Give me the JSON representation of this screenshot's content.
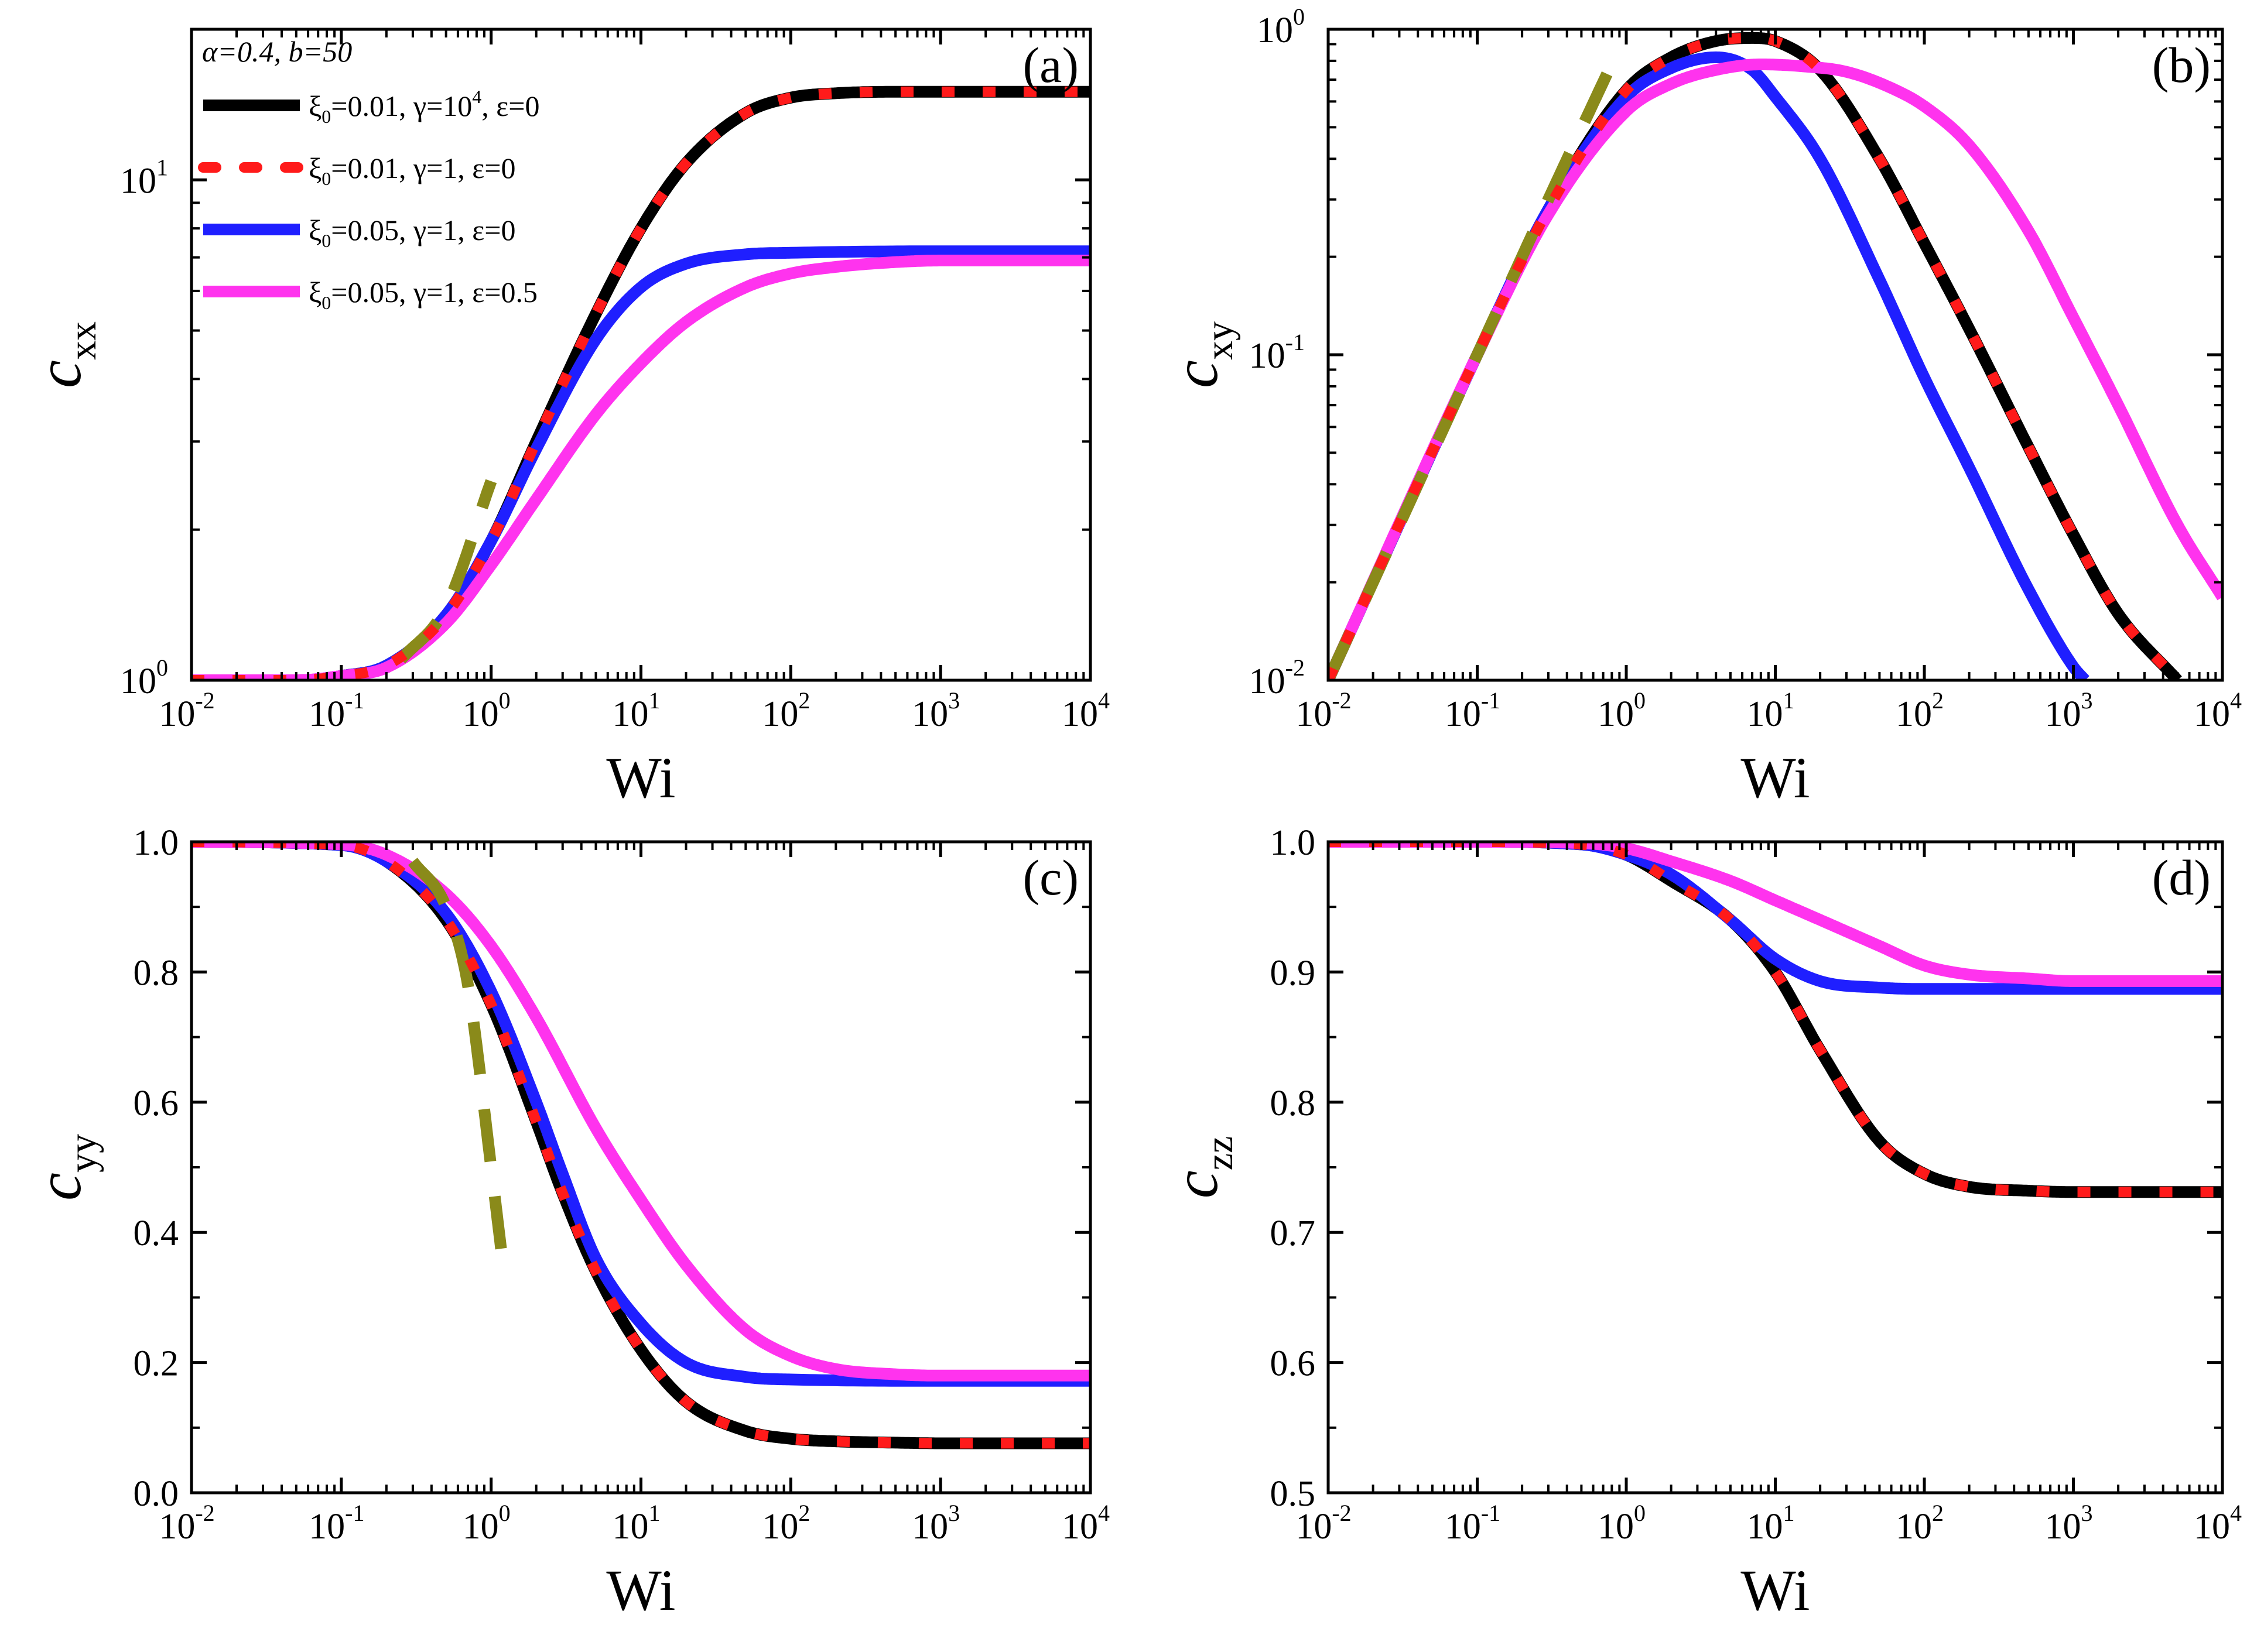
{
  "colors": {
    "black": "#000000",
    "red": "#ff1a1a",
    "blue": "#1f1fff",
    "magenta": "#ff33ee",
    "olive": "#8a8a1a"
  },
  "legend": {
    "header": "α=0.4, b=50",
    "entries": [
      {
        "label": "ξ0=0.01, γ=10^4, ε=0",
        "color": "black",
        "style": "solid"
      },
      {
        "label": "ξ0=0.01, γ=1, ε=0",
        "color": "red",
        "style": "dotted"
      },
      {
        "label": "ξ0=0.05, γ=1, ε=0",
        "color": "blue",
        "style": "solid"
      },
      {
        "label": "ξ0=0.05, γ=1, ε=0.5",
        "color": "magenta",
        "style": "solid"
      }
    ]
  },
  "chart_data": [
    {
      "id": "a",
      "panel_label": "(a)",
      "type": "line",
      "xlabel": "Wi",
      "ylabel_main": "c",
      "ylabel_sub": "xx",
      "xscale": "log",
      "yscale": "log",
      "xlim": [
        0.01,
        10000
      ],
      "ylim": [
        1,
        20
      ],
      "xticks": [
        {
          "v": 0.01,
          "base": "10",
          "exp": "-2"
        },
        {
          "v": 0.1,
          "base": "10",
          "exp": "-1"
        },
        {
          "v": 1,
          "base": "10",
          "exp": "0"
        },
        {
          "v": 10,
          "base": "10",
          "exp": "1"
        },
        {
          "v": 100,
          "base": "10",
          "exp": "2"
        },
        {
          "v": 1000,
          "base": "10",
          "exp": "3"
        },
        {
          "v": 10000,
          "base": "10",
          "exp": "4"
        }
      ],
      "yticks": [
        {
          "v": 1,
          "base": "10",
          "exp": "0"
        },
        {
          "v": 10,
          "base": "10",
          "exp": "1"
        }
      ],
      "series": [
        {
          "color": "black",
          "style": "solid",
          "x": [
            0.01,
            0.05,
            0.1,
            0.2,
            0.5,
            1,
            2,
            5,
            10,
            20,
            50,
            100,
            200,
            500,
            1000,
            10000
          ],
          "y": [
            1.0,
            1.0,
            1.02,
            1.07,
            1.35,
            1.9,
            3.0,
            5.4,
            8.0,
            10.8,
            13.6,
            14.6,
            14.9,
            15.0,
            15.0,
            15.0
          ]
        },
        {
          "color": "red",
          "style": "dotted",
          "x": [
            0.01,
            0.05,
            0.1,
            0.2,
            0.5,
            1,
            2,
            5,
            10,
            20,
            50,
            100,
            200,
            500,
            1000,
            10000
          ],
          "y": [
            1.0,
            1.0,
            1.02,
            1.07,
            1.35,
            1.9,
            3.0,
            5.4,
            8.0,
            10.8,
            13.6,
            14.6,
            14.9,
            15.0,
            15.0,
            15.0
          ]
        },
        {
          "color": "blue",
          "style": "solid",
          "x": [
            0.01,
            0.05,
            0.1,
            0.2,
            0.5,
            1,
            2,
            5,
            10,
            20,
            50,
            100,
            1000,
            10000
          ],
          "y": [
            1.0,
            1.0,
            1.02,
            1.07,
            1.35,
            1.9,
            2.9,
            4.8,
            6.1,
            6.8,
            7.1,
            7.15,
            7.2,
            7.2
          ]
        },
        {
          "color": "magenta",
          "style": "solid",
          "x": [
            0.01,
            0.05,
            0.1,
            0.2,
            0.5,
            1,
            2,
            5,
            10,
            20,
            50,
            100,
            200,
            500,
            1000,
            10000
          ],
          "y": [
            1.0,
            1.0,
            1.02,
            1.06,
            1.3,
            1.7,
            2.3,
            3.4,
            4.3,
            5.2,
            6.1,
            6.5,
            6.7,
            6.85,
            6.9,
            6.9
          ]
        },
        {
          "color": "olive",
          "style": "dashed",
          "x": [
            0.25,
            0.5,
            1
          ],
          "y": [
            1.1,
            1.4,
            2.5
          ]
        }
      ]
    },
    {
      "id": "b",
      "panel_label": "(b)",
      "type": "line",
      "xlabel": "Wi",
      "ylabel_main": "c",
      "ylabel_sub": "xy",
      "xscale": "log",
      "yscale": "log",
      "xlim": [
        0.01,
        10000
      ],
      "ylim": [
        0.01,
        1
      ],
      "xticks": [
        {
          "v": 0.01,
          "base": "10",
          "exp": "-2"
        },
        {
          "v": 0.1,
          "base": "10",
          "exp": "-1"
        },
        {
          "v": 1,
          "base": "10",
          "exp": "0"
        },
        {
          "v": 10,
          "base": "10",
          "exp": "1"
        },
        {
          "v": 100,
          "base": "10",
          "exp": "2"
        },
        {
          "v": 1000,
          "base": "10",
          "exp": "3"
        },
        {
          "v": 10000,
          "base": "10",
          "exp": "4"
        }
      ],
      "yticks": [
        {
          "v": 0.01,
          "base": "10",
          "exp": "-2"
        },
        {
          "v": 0.1,
          "base": "10",
          "exp": "-1"
        },
        {
          "v": 1,
          "base": "10",
          "exp": "0"
        }
      ],
      "series": [
        {
          "color": "black",
          "style": "solid",
          "x": [
            0.01,
            0.1,
            0.3,
            1,
            2,
            4,
            7,
            10,
            20,
            50,
            100,
            200,
            500,
            1000,
            2000,
            5000
          ],
          "y": [
            0.01,
            0.1,
            0.28,
            0.65,
            0.82,
            0.92,
            0.94,
            0.92,
            0.75,
            0.4,
            0.22,
            0.12,
            0.052,
            0.028,
            0.016,
            0.01
          ]
        },
        {
          "color": "red",
          "style": "dotted",
          "x": [
            0.01,
            0.1,
            0.3,
            1,
            2,
            4,
            7,
            10,
            20,
            50,
            100,
            200,
            500,
            1000,
            2000,
            5000
          ],
          "y": [
            0.01,
            0.1,
            0.28,
            0.65,
            0.82,
            0.92,
            0.94,
            0.92,
            0.75,
            0.4,
            0.22,
            0.12,
            0.052,
            0.028,
            0.016,
            0.01
          ]
        },
        {
          "color": "blue",
          "style": "solid",
          "x": [
            0.01,
            0.1,
            0.3,
            1,
            2,
            4,
            7,
            10,
            20,
            50,
            100,
            200,
            500,
            1000,
            1200
          ],
          "y": [
            0.01,
            0.1,
            0.28,
            0.62,
            0.76,
            0.82,
            0.75,
            0.62,
            0.4,
            0.17,
            0.085,
            0.045,
            0.019,
            0.011,
            0.01
          ]
        },
        {
          "color": "magenta",
          "style": "solid",
          "x": [
            0.01,
            0.1,
            0.3,
            1,
            2,
            4,
            8,
            15,
            30,
            60,
            100,
            200,
            500,
            1000,
            2000,
            5000,
            10000
          ],
          "y": [
            0.01,
            0.1,
            0.27,
            0.56,
            0.68,
            0.75,
            0.78,
            0.77,
            0.74,
            0.66,
            0.58,
            0.44,
            0.24,
            0.13,
            0.07,
            0.03,
            0.018
          ]
        },
        {
          "color": "olive",
          "style": "dashed",
          "x": [
            0.01,
            0.1,
            0.3,
            0.9
          ],
          "y": [
            0.01,
            0.1,
            0.3,
            0.88
          ]
        }
      ]
    },
    {
      "id": "c",
      "panel_label": "(c)",
      "type": "line",
      "xlabel": "Wi",
      "ylabel_main": "c",
      "ylabel_sub": "yy",
      "xscale": "log",
      "yscale": "linear",
      "xlim": [
        0.01,
        10000
      ],
      "ylim": [
        0.0,
        1.0
      ],
      "xticks": [
        {
          "v": 0.01,
          "base": "10",
          "exp": "-2"
        },
        {
          "v": 0.1,
          "base": "10",
          "exp": "-1"
        },
        {
          "v": 1,
          "base": "10",
          "exp": "0"
        },
        {
          "v": 10,
          "base": "10",
          "exp": "1"
        },
        {
          "v": 100,
          "base": "10",
          "exp": "2"
        },
        {
          "v": 1000,
          "base": "10",
          "exp": "3"
        },
        {
          "v": 10000,
          "base": "10",
          "exp": "4"
        }
      ],
      "yticks": [
        {
          "v": 0.0,
          "label": "0.0"
        },
        {
          "v": 0.2,
          "label": "0.2"
        },
        {
          "v": 0.4,
          "label": "0.4"
        },
        {
          "v": 0.6,
          "label": "0.6"
        },
        {
          "v": 0.8,
          "label": "0.8"
        },
        {
          "v": 1.0,
          "label": "1.0"
        }
      ],
      "series": [
        {
          "color": "black",
          "style": "solid",
          "x": [
            0.01,
            0.1,
            0.2,
            0.5,
            1,
            2,
            3,
            5,
            10,
            20,
            50,
            100,
            200,
            500,
            1000,
            10000
          ],
          "y": [
            1.0,
            0.995,
            0.97,
            0.88,
            0.75,
            0.57,
            0.46,
            0.34,
            0.22,
            0.14,
            0.095,
            0.083,
            0.079,
            0.077,
            0.076,
            0.076
          ]
        },
        {
          "color": "red",
          "style": "dotted",
          "x": [
            0.01,
            0.1,
            0.2,
            0.5,
            1,
            2,
            3,
            5,
            10,
            20,
            50,
            100,
            200,
            500,
            1000,
            10000
          ],
          "y": [
            1.0,
            0.995,
            0.97,
            0.88,
            0.75,
            0.57,
            0.46,
            0.34,
            0.22,
            0.14,
            0.095,
            0.083,
            0.079,
            0.077,
            0.076,
            0.076
          ]
        },
        {
          "color": "blue",
          "style": "solid",
          "x": [
            0.01,
            0.1,
            0.2,
            0.5,
            1,
            2,
            3,
            5,
            10,
            20,
            50,
            100,
            1000,
            10000
          ],
          "y": [
            1.0,
            0.995,
            0.97,
            0.89,
            0.77,
            0.6,
            0.49,
            0.36,
            0.26,
            0.2,
            0.178,
            0.174,
            0.172,
            0.172
          ]
        },
        {
          "color": "magenta",
          "style": "solid",
          "x": [
            0.01,
            0.1,
            0.2,
            0.5,
            1,
            2,
            5,
            10,
            20,
            50,
            100,
            200,
            500,
            1000,
            10000
          ],
          "y": [
            1.0,
            0.996,
            0.98,
            0.92,
            0.84,
            0.73,
            0.56,
            0.45,
            0.35,
            0.25,
            0.21,
            0.19,
            0.182,
            0.18,
            0.18
          ]
        },
        {
          "color": "olive",
          "style": "dashed",
          "x": [
            0.3,
            0.5,
            0.7,
            1.0,
            1.2
          ],
          "y": [
            0.97,
            0.9,
            0.78,
            0.5,
            0.35
          ]
        }
      ]
    },
    {
      "id": "d",
      "panel_label": "(d)",
      "type": "line",
      "xlabel": "Wi",
      "ylabel_main": "c",
      "ylabel_sub": "zz",
      "xscale": "log",
      "yscale": "linear",
      "xlim": [
        0.01,
        10000
      ],
      "ylim": [
        0.5,
        1.0
      ],
      "xticks": [
        {
          "v": 0.01,
          "base": "10",
          "exp": "-2"
        },
        {
          "v": 0.1,
          "base": "10",
          "exp": "-1"
        },
        {
          "v": 1,
          "base": "10",
          "exp": "0"
        },
        {
          "v": 10,
          "base": "10",
          "exp": "1"
        },
        {
          "v": 100,
          "base": "10",
          "exp": "2"
        },
        {
          "v": 1000,
          "base": "10",
          "exp": "3"
        },
        {
          "v": 10000,
          "base": "10",
          "exp": "4"
        }
      ],
      "yticks": [
        {
          "v": 0.5,
          "label": "0.5"
        },
        {
          "v": 0.6,
          "label": "0.6"
        },
        {
          "v": 0.7,
          "label": "0.7"
        },
        {
          "v": 0.8,
          "label": "0.8"
        },
        {
          "v": 0.9,
          "label": "0.9"
        },
        {
          "v": 1.0,
          "label": "1.0"
        }
      ],
      "series": [
        {
          "color": "black",
          "style": "solid",
          "x": [
            0.01,
            0.1,
            0.5,
            1,
            2,
            5,
            10,
            20,
            50,
            100,
            200,
            500,
            1000,
            10000
          ],
          "y": [
            1.0,
            1.0,
            0.998,
            0.99,
            0.97,
            0.94,
            0.9,
            0.84,
            0.77,
            0.745,
            0.735,
            0.732,
            0.731,
            0.731
          ]
        },
        {
          "color": "red",
          "style": "dotted",
          "x": [
            0.01,
            0.1,
            0.5,
            1,
            2,
            5,
            10,
            20,
            50,
            100,
            200,
            500,
            1000,
            10000
          ],
          "y": [
            1.0,
            1.0,
            0.998,
            0.99,
            0.97,
            0.94,
            0.9,
            0.84,
            0.77,
            0.745,
            0.735,
            0.732,
            0.731,
            0.731
          ]
        },
        {
          "color": "blue",
          "style": "solid",
          "x": [
            0.01,
            0.1,
            0.5,
            1,
            2,
            5,
            10,
            20,
            50,
            100,
            1000,
            10000
          ],
          "y": [
            1.0,
            1.0,
            0.998,
            0.99,
            0.975,
            0.94,
            0.91,
            0.893,
            0.888,
            0.887,
            0.887,
            0.887
          ]
        },
        {
          "color": "magenta",
          "style": "solid",
          "x": [
            0.01,
            0.1,
            0.5,
            1,
            2,
            5,
            10,
            20,
            50,
            100,
            200,
            500,
            1000,
            10000
          ],
          "y": [
            1.0,
            1.0,
            0.999,
            0.995,
            0.985,
            0.97,
            0.955,
            0.94,
            0.92,
            0.905,
            0.898,
            0.895,
            0.893,
            0.893
          ]
        }
      ]
    }
  ]
}
